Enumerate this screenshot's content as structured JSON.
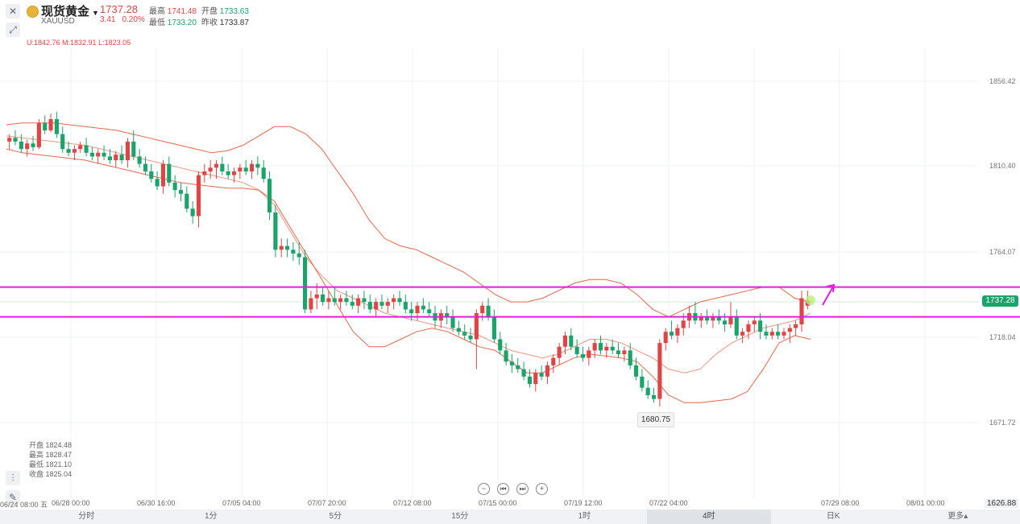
{
  "header": {
    "title": "现货黄金",
    "subtitle": "XAUUSD",
    "price": "1737.28",
    "change": "3.41",
    "change_pct": "0.20%",
    "high_label": "最高",
    "high": "1741.48",
    "open_label": "开盘",
    "open": "1733.63",
    "low_label": "最低",
    "low": "1733.20",
    "prev_label": "昨收",
    "prev": "1733.87"
  },
  "boll": "U:1842.76  M:1832.91  L:1823.05",
  "ohlc_panel": [
    {
      "label": "开盘",
      "value": "1824.48"
    },
    {
      "label": "最高",
      "value": "1828.47"
    },
    {
      "label": "最低",
      "value": "1821.10"
    },
    {
      "label": "收盘",
      "value": "1825.04"
    }
  ],
  "y_axis": [
    "1856.42",
    "1810.40",
    "1764.07",
    "1718.04",
    "1671.72"
  ],
  "current_price_tag": "1737.28",
  "low_marker": "1680.75",
  "bottom_right_price": "1626.88",
  "x_axis": [
    "06/24 08:00 五",
    "06/28 00:00",
    "06/30 16:00",
    "07/05 04:00",
    "07/07 20:00",
    "07/12 08:00",
    "07/15 00:00",
    "07/19 12:00",
    "07/22 04:00",
    "07/29 08:00",
    "08/01 00:00"
  ],
  "tabs": [
    "分时",
    "1分",
    "5分",
    "15分",
    "1时",
    "4时",
    "日K",
    "更多▴"
  ],
  "active_tab": "4时",
  "nav_buttons": [
    "−",
    "⏮",
    "⏭",
    "+"
  ],
  "colors": {
    "up": "#e04545",
    "down": "#1aa36a",
    "hline": "#e01ee0",
    "boll": "#e8664a",
    "grid": "#eef0f3"
  },
  "chart_data": {
    "type": "candlestick",
    "x_range": [
      "06/24 08:00",
      "08/01 00:00"
    ],
    "ylim": [
      1626.88,
      1872
    ],
    "horizontal_lines": [
      1744,
      1728
    ],
    "candles": [
      [
        1822,
        1826,
        1818,
        1824
      ],
      [
        1824,
        1828,
        1820,
        1822
      ],
      [
        1822,
        1826,
        1816,
        1818
      ],
      [
        1818,
        1823,
        1814,
        1821
      ],
      [
        1821,
        1825,
        1817,
        1819
      ],
      [
        1819,
        1834,
        1818,
        1832
      ],
      [
        1832,
        1836,
        1826,
        1828
      ],
      [
        1828,
        1837,
        1827,
        1834
      ],
      [
        1834,
        1838,
        1824,
        1826
      ],
      [
        1826,
        1830,
        1816,
        1818
      ],
      [
        1818,
        1822,
        1814,
        1816
      ],
      [
        1816,
        1820,
        1812,
        1818
      ],
      [
        1818,
        1822,
        1816,
        1820
      ],
      [
        1820,
        1824,
        1814,
        1816
      ],
      [
        1816,
        1819,
        1812,
        1814
      ],
      [
        1814,
        1818,
        1810,
        1816
      ],
      [
        1816,
        1820,
        1812,
        1814
      ],
      [
        1814,
        1818,
        1810,
        1812
      ],
      [
        1812,
        1817,
        1808,
        1815
      ],
      [
        1815,
        1820,
        1810,
        1812
      ],
      [
        1812,
        1824,
        1808,
        1822
      ],
      [
        1822,
        1828,
        1812,
        1814
      ],
      [
        1814,
        1818,
        1808,
        1810
      ],
      [
        1810,
        1814,
        1804,
        1806
      ],
      [
        1806,
        1810,
        1800,
        1802
      ],
      [
        1802,
        1806,
        1796,
        1798
      ],
      [
        1798,
        1812,
        1794,
        1810
      ],
      [
        1810,
        1814,
        1798,
        1800
      ],
      [
        1800,
        1804,
        1792,
        1796
      ],
      [
        1796,
        1800,
        1790,
        1794
      ],
      [
        1794,
        1798,
        1784,
        1786
      ],
      [
        1786,
        1790,
        1778,
        1782
      ],
      [
        1782,
        1806,
        1776,
        1804
      ],
      [
        1804,
        1810,
        1800,
        1806
      ],
      [
        1806,
        1812,
        1802,
        1808
      ],
      [
        1808,
        1812,
        1802,
        1810
      ],
      [
        1810,
        1814,
        1804,
        1806
      ],
      [
        1806,
        1810,
        1802,
        1804
      ],
      [
        1804,
        1808,
        1800,
        1806
      ],
      [
        1806,
        1810,
        1802,
        1808
      ],
      [
        1808,
        1812,
        1804,
        1806
      ],
      [
        1806,
        1812,
        1802,
        1810
      ],
      [
        1810,
        1814,
        1804,
        1808
      ],
      [
        1808,
        1812,
        1800,
        1802
      ],
      [
        1802,
        1806,
        1780,
        1784
      ],
      [
        1784,
        1788,
        1760,
        1764
      ],
      [
        1764,
        1770,
        1760,
        1766
      ],
      [
        1766,
        1770,
        1760,
        1764
      ],
      [
        1764,
        1768,
        1758,
        1762
      ],
      [
        1762,
        1768,
        1756,
        1760
      ],
      [
        1760,
        1764,
        1730,
        1732
      ],
      [
        1732,
        1742,
        1730,
        1738
      ],
      [
        1738,
        1746,
        1732,
        1740
      ],
      [
        1740,
        1744,
        1734,
        1736
      ],
      [
        1736,
        1742,
        1732,
        1738
      ],
      [
        1738,
        1744,
        1734,
        1736
      ],
      [
        1736,
        1740,
        1732,
        1738
      ],
      [
        1738,
        1742,
        1734,
        1736
      ],
      [
        1736,
        1740,
        1732,
        1734
      ],
      [
        1734,
        1740,
        1730,
        1738
      ],
      [
        1738,
        1742,
        1732,
        1736
      ],
      [
        1736,
        1740,
        1730,
        1732
      ],
      [
        1732,
        1738,
        1728,
        1736
      ],
      [
        1736,
        1740,
        1732,
        1734
      ],
      [
        1734,
        1738,
        1730,
        1736
      ],
      [
        1736,
        1740,
        1732,
        1738
      ],
      [
        1738,
        1742,
        1734,
        1736
      ],
      [
        1736,
        1740,
        1730,
        1732
      ],
      [
        1732,
        1736,
        1726,
        1730
      ],
      [
        1730,
        1736,
        1726,
        1734
      ],
      [
        1734,
        1738,
        1730,
        1732
      ],
      [
        1732,
        1736,
        1728,
        1730
      ],
      [
        1730,
        1734,
        1722,
        1726
      ],
      [
        1726,
        1732,
        1722,
        1730
      ],
      [
        1730,
        1734,
        1724,
        1728
      ],
      [
        1728,
        1732,
        1720,
        1722
      ],
      [
        1722,
        1726,
        1718,
        1720
      ],
      [
        1720,
        1724,
        1716,
        1718
      ],
      [
        1718,
        1722,
        1714,
        1716
      ],
      [
        1716,
        1732,
        1700,
        1730
      ],
      [
        1730,
        1736,
        1726,
        1734
      ],
      [
        1734,
        1738,
        1726,
        1728
      ],
      [
        1728,
        1732,
        1714,
        1716
      ],
      [
        1716,
        1720,
        1708,
        1710
      ],
      [
        1710,
        1714,
        1702,
        1704
      ],
      [
        1704,
        1708,
        1698,
        1702
      ],
      [
        1702,
        1706,
        1698,
        1700
      ],
      [
        1700,
        1704,
        1694,
        1696
      ],
      [
        1696,
        1700,
        1690,
        1692
      ],
      [
        1692,
        1700,
        1688,
        1698
      ],
      [
        1698,
        1702,
        1694,
        1696
      ],
      [
        1696,
        1704,
        1692,
        1702
      ],
      [
        1702,
        1708,
        1698,
        1706
      ],
      [
        1706,
        1714,
        1702,
        1712
      ],
      [
        1712,
        1720,
        1708,
        1718
      ],
      [
        1718,
        1722,
        1710,
        1712
      ],
      [
        1712,
        1716,
        1706,
        1708
      ],
      [
        1708,
        1712,
        1704,
        1706
      ],
      [
        1706,
        1712,
        1702,
        1710
      ],
      [
        1710,
        1716,
        1706,
        1714
      ],
      [
        1714,
        1718,
        1708,
        1710
      ],
      [
        1710,
        1714,
        1706,
        1712
      ],
      [
        1712,
        1716,
        1708,
        1710
      ],
      [
        1710,
        1714,
        1706,
        1708
      ],
      [
        1708,
        1712,
        1704,
        1710
      ],
      [
        1710,
        1714,
        1700,
        1702
      ],
      [
        1702,
        1706,
        1694,
        1696
      ],
      [
        1696,
        1700,
        1688,
        1690
      ],
      [
        1690,
        1694,
        1684,
        1686
      ],
      [
        1686,
        1690,
        1682,
        1684
      ],
      [
        1684,
        1716,
        1680,
        1714
      ],
      [
        1714,
        1722,
        1710,
        1720
      ],
      [
        1720,
        1726,
        1716,
        1718
      ],
      [
        1718,
        1724,
        1714,
        1722
      ],
      [
        1722,
        1730,
        1718,
        1726
      ],
      [
        1726,
        1734,
        1722,
        1730
      ],
      [
        1730,
        1736,
        1724,
        1726
      ],
      [
        1726,
        1730,
        1722,
        1728
      ],
      [
        1728,
        1732,
        1724,
        1726
      ],
      [
        1726,
        1730,
        1722,
        1728
      ],
      [
        1728,
        1732,
        1724,
        1726
      ],
      [
        1726,
        1730,
        1720,
        1724
      ],
      [
        1724,
        1736,
        1722,
        1728
      ],
      [
        1728,
        1732,
        1716,
        1718
      ],
      [
        1718,
        1722,
        1714,
        1720
      ],
      [
        1720,
        1726,
        1716,
        1724
      ],
      [
        1724,
        1728,
        1720,
        1726
      ],
      [
        1726,
        1730,
        1716,
        1720
      ],
      [
        1720,
        1724,
        1716,
        1718
      ],
      [
        1718,
        1722,
        1716,
        1720
      ],
      [
        1720,
        1724,
        1716,
        1718
      ],
      [
        1718,
        1722,
        1716,
        1720
      ],
      [
        1720,
        1724,
        1714,
        1722
      ],
      [
        1722,
        1726,
        1718,
        1724
      ],
      [
        1724,
        1742,
        1720,
        1738
      ],
      [
        1734,
        1742,
        1732,
        1737
      ]
    ],
    "boll_upper": [
      1831,
      1832,
      1832,
      1832,
      1831,
      1830,
      1829,
      1828,
      1826,
      1824,
      1822,
      1820,
      1818,
      1816,
      1817,
      1820,
      1825,
      1830,
      1830,
      1826,
      1818,
      1806,
      1794,
      1780,
      1770,
      1766,
      1764,
      1760,
      1756,
      1752,
      1746,
      1740,
      1736,
      1736,
      1738,
      1742,
      1746,
      1748,
      1748,
      1746,
      1740,
      1732,
      1728,
      1732,
      1736,
      1738,
      1740,
      1742,
      1744,
      1744,
      1738,
      1736
    ],
    "boll_lower": [
      1818,
      1816,
      1815,
      1814,
      1813,
      1812,
      1810,
      1808,
      1806,
      1804,
      1802,
      1800,
      1799,
      1798,
      1797,
      1797,
      1796,
      1790,
      1776,
      1762,
      1748,
      1734,
      1720,
      1712,
      1712,
      1716,
      1720,
      1722,
      1720,
      1716,
      1712,
      1710,
      1704,
      1698,
      1698,
      1702,
      1706,
      1708,
      1707,
      1706,
      1704,
      1696,
      1686,
      1682,
      1682,
      1683,
      1684,
      1688,
      1700,
      1714,
      1718,
      1716
    ],
    "boll_mid": [
      1825,
      1824,
      1823,
      1822,
      1821,
      1820,
      1818,
      1816,
      1814,
      1812,
      1810,
      1808,
      1806,
      1804,
      1802,
      1800,
      1796,
      1788,
      1774,
      1760,
      1750,
      1742,
      1738,
      1734,
      1730,
      1728,
      1726,
      1724,
      1722,
      1720,
      1718,
      1714,
      1710,
      1708,
      1706,
      1708,
      1712,
      1716,
      1716,
      1714,
      1710,
      1706,
      1700,
      1698,
      1700,
      1708,
      1714,
      1718,
      1722,
      1724,
      1726,
      1730
    ]
  }
}
